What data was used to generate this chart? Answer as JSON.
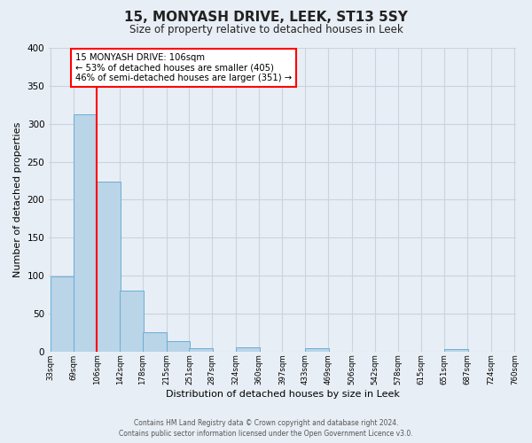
{
  "title": "15, MONYASH DRIVE, LEEK, ST13 5SY",
  "subtitle": "Size of property relative to detached houses in Leek",
  "xlabel": "Distribution of detached houses by size in Leek",
  "ylabel": "Number of detached properties",
  "bar_left_edges": [
    33,
    69,
    106,
    142,
    178,
    215,
    251,
    287,
    324,
    360,
    397,
    433,
    469,
    506,
    542,
    578,
    615,
    651,
    687,
    724
  ],
  "bar_heights": [
    99,
    313,
    224,
    80,
    25,
    14,
    5,
    0,
    6,
    0,
    0,
    5,
    0,
    0,
    0,
    0,
    0,
    3,
    0,
    0
  ],
  "bin_width": 37,
  "bar_color": "#bad4e8",
  "bar_edge_color": "#6aaed6",
  "vline_x": 106,
  "vline_color": "red",
  "ylim": [
    0,
    400
  ],
  "yticks": [
    0,
    50,
    100,
    150,
    200,
    250,
    300,
    350,
    400
  ],
  "xtick_labels": [
    "33sqm",
    "69sqm",
    "106sqm",
    "142sqm",
    "178sqm",
    "215sqm",
    "251sqm",
    "287sqm",
    "324sqm",
    "360sqm",
    "397sqm",
    "433sqm",
    "469sqm",
    "506sqm",
    "542sqm",
    "578sqm",
    "615sqm",
    "651sqm",
    "687sqm",
    "724sqm",
    "760sqm"
  ],
  "annotation_title": "15 MONYASH DRIVE: 106sqm",
  "annotation_line1": "← 53% of detached houses are smaller (405)",
  "annotation_line2": "46% of semi-detached houses are larger (351) →",
  "annotation_box_color": "#ffffff",
  "annotation_box_edge_color": "red",
  "grid_color": "#c8d4e0",
  "bg_color": "#e8eef5",
  "footer1": "Contains HM Land Registry data © Crown copyright and database right 2024.",
  "footer2": "Contains public sector information licensed under the Open Government Licence v3.0."
}
